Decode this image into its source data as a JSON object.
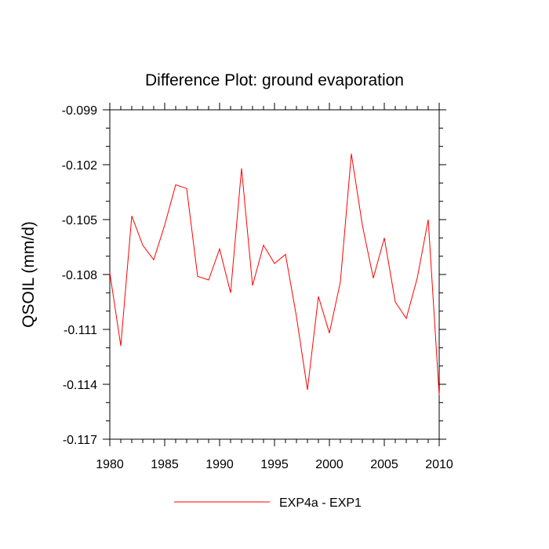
{
  "chart_data": {
    "type": "line",
    "title": "Difference Plot: ground evaporation",
    "xlabel": "",
    "ylabel": "QSOIL  (mm/d)",
    "xlim": [
      1980,
      2010
    ],
    "ylim": [
      -0.117,
      -0.099
    ],
    "x_ticks": [
      1980,
      1985,
      1990,
      1995,
      2000,
      2005,
      2010
    ],
    "x_tick_labels": [
      "1980",
      "1985",
      "1990",
      "1995",
      "2000",
      "2005",
      "2010"
    ],
    "y_ticks": [
      -0.099,
      -0.102,
      -0.105,
      -0.108,
      -0.111,
      -0.114,
      -0.117
    ],
    "y_tick_labels": [
      "-0.099",
      "-0.102",
      "-0.105",
      "-0.108",
      "-0.111",
      "-0.114",
      "-0.117"
    ],
    "grid": false,
    "legend_position": "bottom-center",
    "series": [
      {
        "name": "EXP4a - EXP1",
        "color": "#ff0000",
        "x": [
          1980,
          1981,
          1982,
          1983,
          1984,
          1985,
          1986,
          1987,
          1988,
          1989,
          1990,
          1991,
          1992,
          1993,
          1994,
          1995,
          1996,
          1997,
          1998,
          1999,
          2000,
          2001,
          2002,
          2003,
          2004,
          2005,
          2006,
          2007,
          2008,
          2009,
          2010
        ],
        "values": [
          -0.1079,
          -0.1119,
          -0.1048,
          -0.1064,
          -0.1072,
          -0.1053,
          -0.1031,
          -0.1033,
          -0.1081,
          -0.1083,
          -0.1066,
          -0.109,
          -0.1022,
          -0.1086,
          -0.1064,
          -0.1074,
          -0.1069,
          -0.1103,
          -0.1143,
          -0.1092,
          -0.1112,
          -0.1084,
          -0.1014,
          -0.1053,
          -0.1082,
          -0.106,
          -0.1095,
          -0.1104,
          -0.1082,
          -0.105,
          -0.1146
        ]
      }
    ]
  }
}
